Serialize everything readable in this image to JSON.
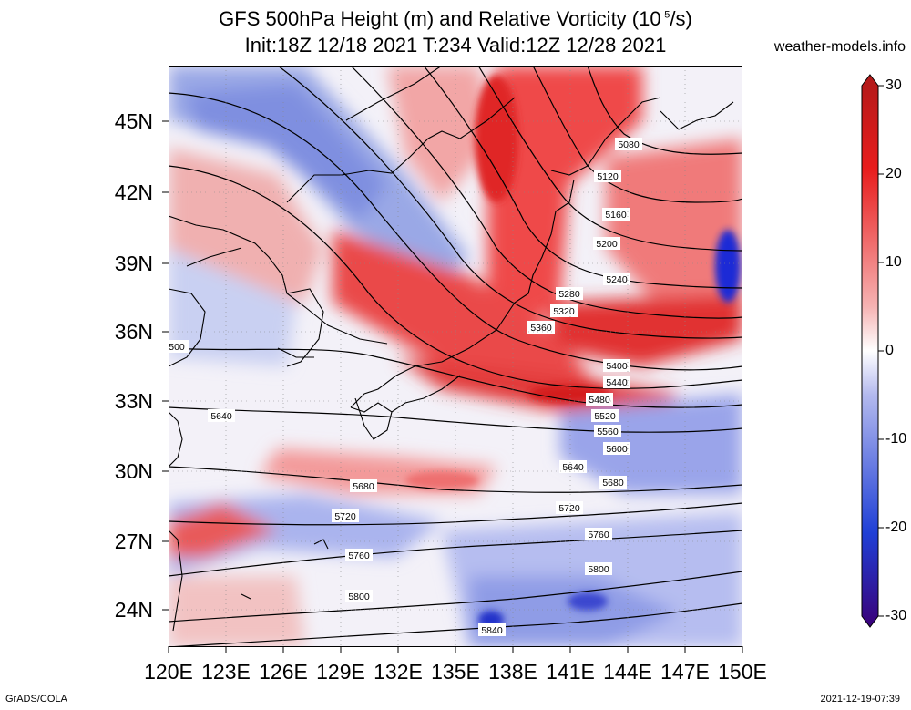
{
  "title": {
    "line1_main": "GFS 500hPa Height (m) and Relative Vorticity (10",
    "line1_exp": "-5",
    "line1_tail": "/s)",
    "line2": "Init:18Z 12/18 2021 T:234 Valid:12Z 12/28 2021"
  },
  "site": "weather-models.info",
  "axes": {
    "lat_labels": [
      "45N",
      "42N",
      "39N",
      "36N",
      "33N",
      "30N",
      "27N",
      "24N"
    ],
    "lon_labels": [
      "120E",
      "123E",
      "126E",
      "129E",
      "132E",
      "135E",
      "138E",
      "141E",
      "144E",
      "147E",
      "150E"
    ],
    "lon_range": [
      120,
      150
    ],
    "lat_range": [
      22.5,
      47
    ]
  },
  "colorbar": {
    "labels": [
      "30",
      "20",
      "10",
      "0",
      "-10",
      "-20",
      "-30"
    ],
    "range": [
      -30,
      30
    ],
    "colors": {
      "min": "#3a0078",
      "neg": "#1f3fd6",
      "zero": "#ffffff",
      "pos": "#e81c1c",
      "max": "#b01a1a"
    }
  },
  "contours": {
    "labels": [
      "5080",
      "5120",
      "5160",
      "5200",
      "5240",
      "5280",
      "5320",
      "5360",
      "5400",
      "5440",
      "5480",
      "5520",
      "5560",
      "5600",
      "5640",
      "5680",
      "5720",
      "5760",
      "5800",
      "5840",
      "500"
    ]
  },
  "footer": {
    "left": "GrADS/COLA",
    "right": "2021-12-19-07:39"
  }
}
